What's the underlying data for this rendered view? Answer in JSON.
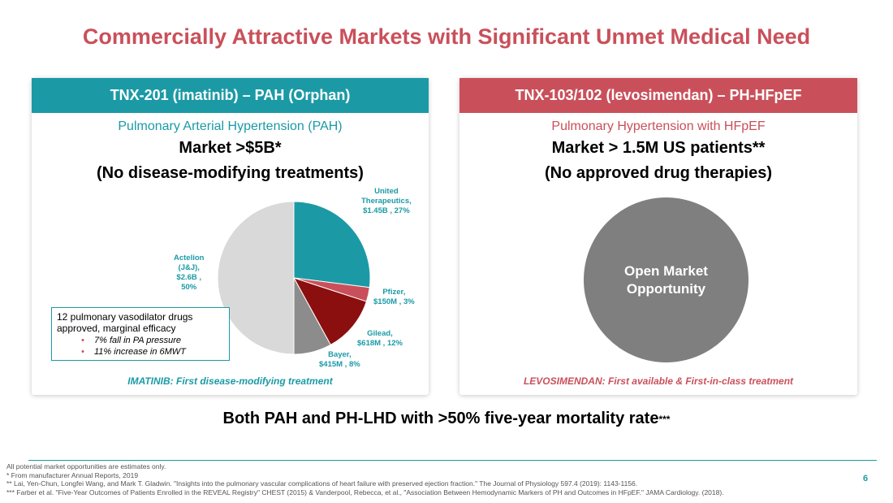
{
  "title": "Commercially Attractive Markets with Significant Unmet Medical Need",
  "left_card": {
    "header": "TNX-201 (imatinib) – PAH  (Orphan)",
    "subtitle": "Pulmonary Arterial Hypertension (PAH)",
    "market": "Market >$5B*",
    "note": "(No disease-modifying treatments)",
    "callout": {
      "title": "12 pulmonary vasodilator drugs approved, marginal efficacy",
      "bullets": [
        "7% fall in PA pressure",
        "11% increase in 6MWT"
      ]
    },
    "footer": "IMATINIB: First disease-modifying treatment"
  },
  "right_card": {
    "header": "TNX-103/102 (levosimendan) – PH-HFpEF",
    "subtitle": "Pulmonary Hypertension with HFpEF",
    "market": "Market > 1.5M US patients**",
    "note": "(No approved drug therapies)",
    "circle_label": "Open Market Opportunity",
    "footer": "LEVOSIMENDAN: First available & First-in-class treatment"
  },
  "chart_data": {
    "type": "pie",
    "slices": [
      {
        "label_lines": [
          "United",
          "Therapeutics,",
          "$1.45B , 27%"
        ],
        "value": 27,
        "color": "#1b9aa6"
      },
      {
        "label_lines": [
          "Pfizer,",
          "$150M , 3%"
        ],
        "value": 3,
        "color": "#c9505a"
      },
      {
        "label_lines": [
          "Gilead,",
          "$618M , 12%"
        ],
        "value": 12,
        "color": "#8b0f0f"
      },
      {
        "label_lines": [
          "Bayer,",
          "$415M , 8%"
        ],
        "value": 8,
        "color": "#8c8c8c"
      },
      {
        "label_lines": [
          "Actelion",
          "(J&J),",
          "$2.6B ,",
          "50%"
        ],
        "value": 50,
        "color": "#d9d9d9"
      }
    ]
  },
  "bottom_statement": "Both PAH and PH-LHD with >50% five-year mortality rate",
  "bottom_statement_sup": "***",
  "footnotes": [
    "All potential market opportunities are estimates only.",
    "*  From manufacturer Annual Reports, 2019",
    "** Lai, Yen-Chun, Longfei Wang, and Mark T. Gladwin. \"Insights into the pulmonary vascular complications of heart failure with preserved ejection fraction.\" The Journal of Physiology 597.4 (2019): 1143-1156.",
    "*** Farber et al. \"Five-Year Outcomes of Patients Enrolled in the REVEAL Registry\" CHEST (2015) & Vanderpool, Rebecca, et al., \"Association Between Hemodynamic Markers of PH and Outcomes in HFpEF.\" JAMA Cardiology. (2018)."
  ],
  "page_number": "6"
}
